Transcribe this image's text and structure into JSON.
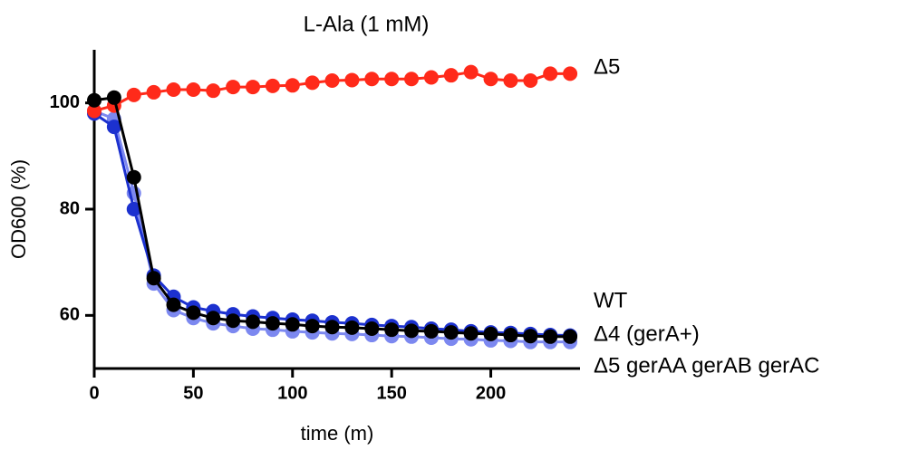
{
  "chart_data": {
    "type": "line",
    "title": "L-Ala (1 mM)",
    "xlabel": "time (m)",
    "ylabel": "OD600 (%)",
    "x": [
      0,
      10,
      20,
      30,
      40,
      50,
      60,
      70,
      80,
      90,
      100,
      110,
      120,
      130,
      140,
      150,
      160,
      170,
      180,
      190,
      200,
      210,
      220,
      230,
      240
    ],
    "xlim": [
      0,
      245
    ],
    "ylim": [
      50,
      110
    ],
    "xticks": [
      0,
      50,
      100,
      150,
      200
    ],
    "yticks": [
      60,
      80,
      100
    ],
    "series": [
      {
        "name": "Δ5 gerAA gerAB gerAC",
        "color": "#7c88f0",
        "values": [
          98.5,
          97,
          83,
          66,
          61,
          59.5,
          58.5,
          58,
          57.5,
          57.3,
          57,
          56.8,
          56.6,
          56.5,
          56.3,
          56.1,
          56,
          55.8,
          55.6,
          55.5,
          55.3,
          55.2,
          55,
          55,
          55
        ]
      },
      {
        "name": "Δ4 (gerA+)",
        "color": "#1c31cf",
        "values": [
          98,
          95.5,
          80,
          67.5,
          63.5,
          61.5,
          60.8,
          60.2,
          59.8,
          59.5,
          59.2,
          59,
          58.7,
          58.5,
          58.2,
          58,
          57.8,
          57.5,
          57.3,
          57,
          56.8,
          56.7,
          56.5,
          56.3,
          56.2
        ]
      },
      {
        "name": "Δ5",
        "color": "#ff2a1a",
        "values": [
          98.5,
          99.5,
          101.5,
          102,
          102.5,
          102.5,
          102.3,
          103,
          103,
          103.2,
          103.3,
          103.8,
          104.2,
          104.3,
          104.5,
          104.5,
          104.5,
          104.8,
          105.2,
          105.8,
          104.5,
          104.2,
          104.2,
          105.5,
          105.5
        ]
      },
      {
        "name": "WT",
        "color": "#000000",
        "values": [
          100.5,
          101,
          86,
          67,
          62,
          60.5,
          59.5,
          59,
          58.8,
          58.5,
          58.3,
          58,
          57.8,
          57.7,
          57.5,
          57.3,
          57.1,
          57,
          56.8,
          56.6,
          56.5,
          56.3,
          56.1,
          56,
          56
        ]
      }
    ]
  }
}
